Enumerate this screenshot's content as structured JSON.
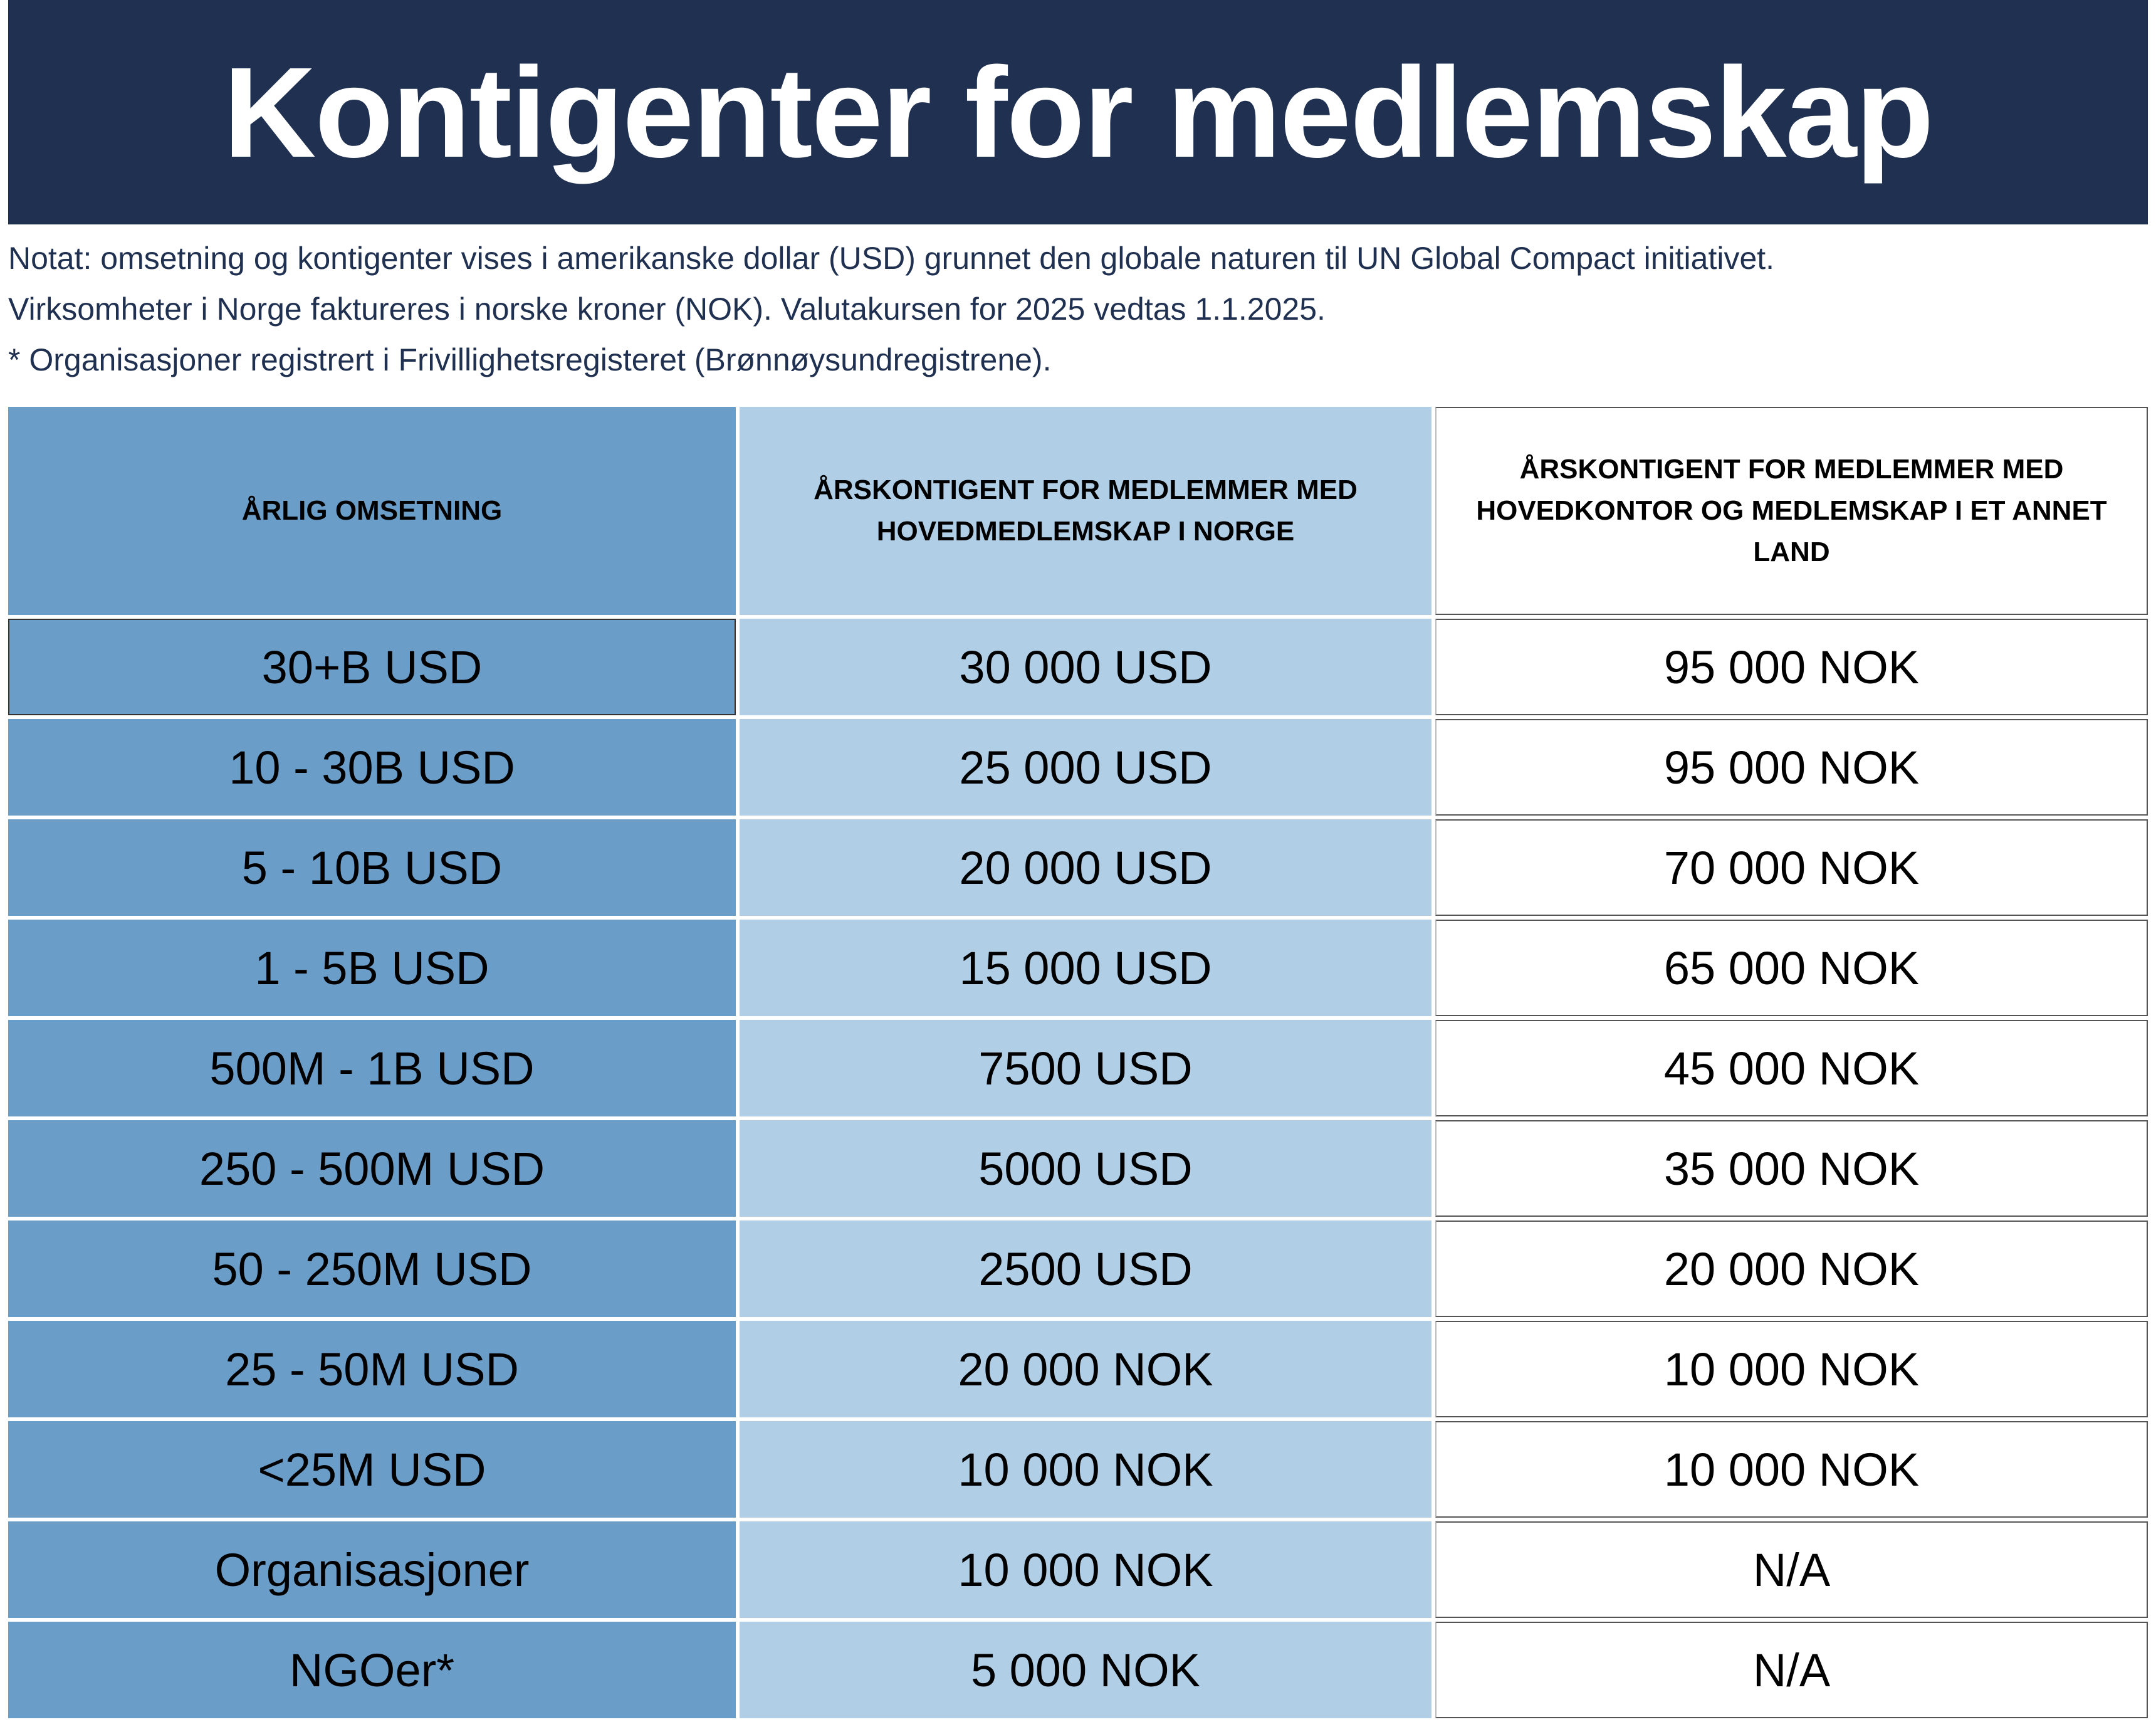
{
  "title": "Kontigenter for medlemskap",
  "notes": [
    "Notat: omsetning og kontigenter vises i amerikanske dollar (USD) grunnet den globale naturen til UN Global Compact initiativet.",
    "Virksomheter i Norge faktureres i norske kroner (NOK). Valutakursen for 2025 vedtas 1.1.2025.",
    "* Organisasjoner registrert i Frivillighetsregisteret (Brønnøysundregistrene)."
  ],
  "table": {
    "headers": [
      "ÅRLIG OMSETNING",
      "ÅRSKONTIGENT FOR MEDLEMMER MED HOVEDMEDLEMSKAP I NORGE",
      "ÅRSKONTIGENT FOR MEDLEMMER MED HOVEDKONTOR OG MEDLEMSKAP I ET ANNET LAND"
    ],
    "rows": [
      [
        "30+B USD",
        "30 000 USD",
        "95 000 NOK"
      ],
      [
        "10 - 30B USD",
        "25 000 USD",
        "95 000 NOK"
      ],
      [
        "5 - 10B USD",
        "20 000 USD",
        "70 000 NOK"
      ],
      [
        "1 - 5B USD",
        "15 000 USD",
        "65 000 NOK"
      ],
      [
        "500M - 1B USD",
        "7500 USD",
        "45 000 NOK"
      ],
      [
        "250 - 500M USD",
        "5000 USD",
        "35 000 NOK"
      ],
      [
        "50 - 250M USD",
        "2500 USD",
        "20 000 NOK"
      ],
      [
        "25 - 50M USD",
        "20 000 NOK",
        "10 000 NOK"
      ],
      [
        "<25M USD",
        "10 000 NOK",
        "10 000 NOK"
      ],
      [
        "Organisasjoner",
        "10 000 NOK",
        "N/A"
      ],
      [
        "NGOer*",
        "5 000 NOK",
        "N/A"
      ]
    ]
  },
  "colors": {
    "banner": "#1f3050",
    "col1": "#6a9dc8",
    "col2": "#b0cfe6",
    "col3": "#ffffff"
  }
}
